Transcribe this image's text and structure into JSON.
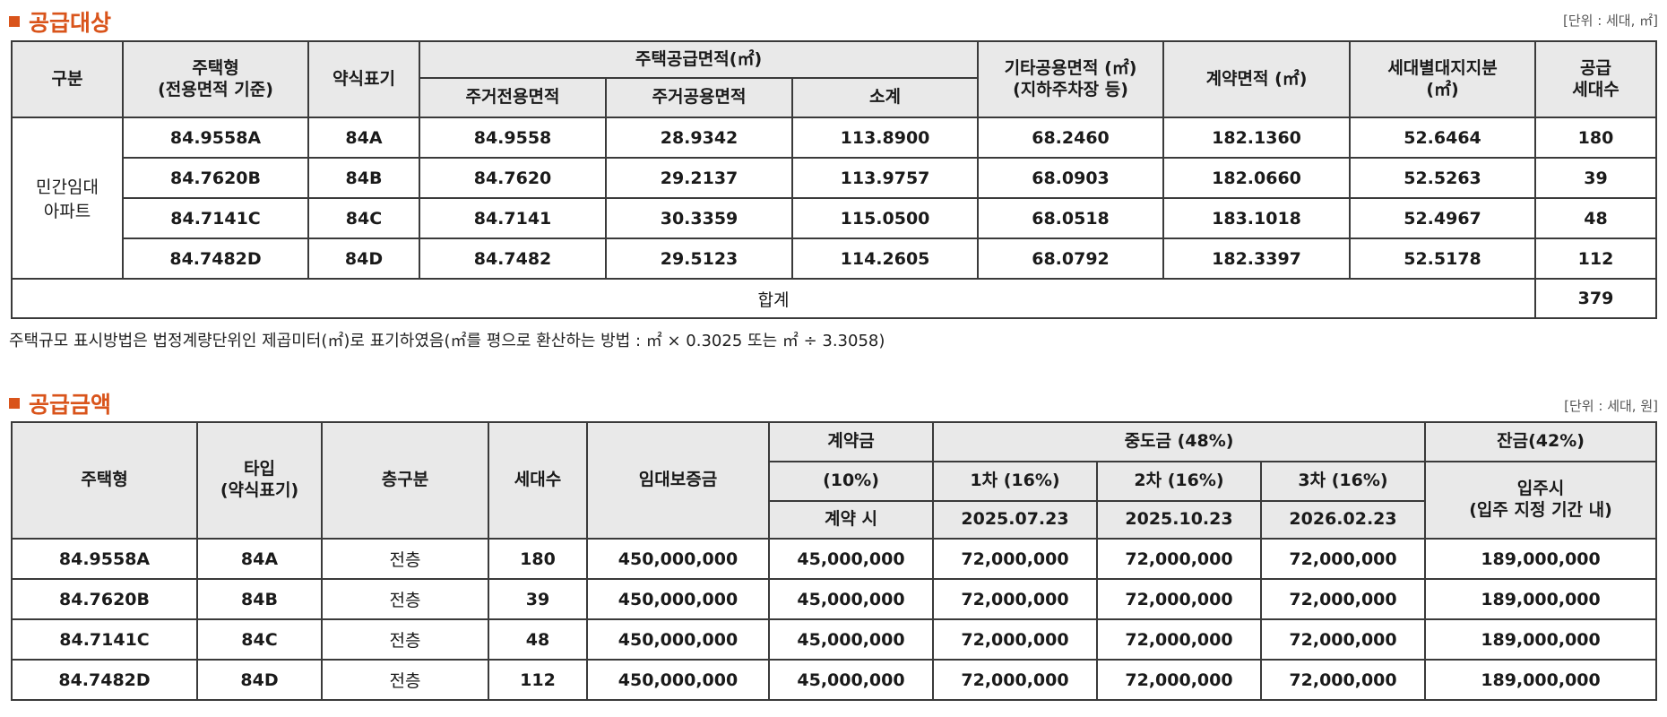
{
  "section1": {
    "title": "공급대상",
    "unit": "[단위 : 세대, ㎡]",
    "headers": {
      "category": "구분",
      "house_type": "주택형",
      "house_type_sub": "(전용면적 기준)",
      "abbr": "약식표기",
      "supply_area": "주택공급면적(㎡)",
      "exclusive": "주거전용면적",
      "common": "주거공용면적",
      "subtotal": "소계",
      "other_common": "기타공용면적 (㎡)",
      "other_common_sub": "(지하주차장 등)",
      "contract_area": "계약면적 (㎡)",
      "land_share": "세대별대지지분",
      "land_share_sub": "(㎡)",
      "supply_units": "공급",
      "supply_units_sub": "세대수"
    },
    "category_line1": "민간임대",
    "category_line2": "아파트",
    "rows": [
      {
        "type": "84.9558A",
        "abbr": "84A",
        "exclusive": "84.9558",
        "common": "28.9342",
        "subtotal": "113.8900",
        "other": "68.2460",
        "contract": "182.1360",
        "land": "52.6464",
        "units": "180"
      },
      {
        "type": "84.7620B",
        "abbr": "84B",
        "exclusive": "84.7620",
        "common": "29.2137",
        "subtotal": "113.9757",
        "other": "68.0903",
        "contract": "182.0660",
        "land": "52.5263",
        "units": "39"
      },
      {
        "type": "84.7141C",
        "abbr": "84C",
        "exclusive": "84.7141",
        "common": "30.3359",
        "subtotal": "115.0500",
        "other": "68.0518",
        "contract": "183.1018",
        "land": "52.4967",
        "units": "48"
      },
      {
        "type": "84.7482D",
        "abbr": "84D",
        "exclusive": "84.7482",
        "common": "29.5123",
        "subtotal": "114.2605",
        "other": "68.0792",
        "contract": "182.3397",
        "land": "52.5178",
        "units": "112"
      }
    ],
    "total_label": "합계",
    "total_units": "379",
    "note": "주택규모 표시방법은 법정계량단위인 제곱미터(㎡)로 표기하였음(㎡를 평으로 환산하는 방법 : ㎡ × 0.3025 또는 ㎡ ÷ 3.3058)"
  },
  "section2": {
    "title": "공급금액",
    "unit": "[단위 : 세대, 원]",
    "headers": {
      "house_type": "주택형",
      "type": "타입",
      "type_sub": "(약식표기)",
      "floor": "층구분",
      "units": "세대수",
      "deposit": "임대보증금",
      "contract": "계약금",
      "contract_pct": "(10%)",
      "contract_when": "계약 시",
      "middle": "중도금 (48%)",
      "m1": "1차 (16%)",
      "m2": "2차 (16%)",
      "m3": "3차 (16%)",
      "m1_date": "2025.07.23",
      "m2_date": "2025.10.23",
      "m3_date": "2026.02.23",
      "balance": "잔금(42%)",
      "balance_when": "입주시",
      "balance_sub": "(입주 지정 기간 내)"
    },
    "rows": [
      {
        "type": "84.9558A",
        "abbr": "84A",
        "floor": "전층",
        "units": "180",
        "deposit": "450,000,000",
        "contract": "45,000,000",
        "m1": "72,000,000",
        "m2": "72,000,000",
        "m3": "72,000,000",
        "balance": "189,000,000"
      },
      {
        "type": "84.7620B",
        "abbr": "84B",
        "floor": "전층",
        "units": "39",
        "deposit": "450,000,000",
        "contract": "45,000,000",
        "m1": "72,000,000",
        "m2": "72,000,000",
        "m3": "72,000,000",
        "balance": "189,000,000"
      },
      {
        "type": "84.7141C",
        "abbr": "84C",
        "floor": "전층",
        "units": "48",
        "deposit": "450,000,000",
        "contract": "45,000,000",
        "m1": "72,000,000",
        "m2": "72,000,000",
        "m3": "72,000,000",
        "balance": "189,000,000"
      },
      {
        "type": "84.7482D",
        "abbr": "84D",
        "floor": "전층",
        "units": "112",
        "deposit": "450,000,000",
        "contract": "45,000,000",
        "m1": "72,000,000",
        "m2": "72,000,000",
        "m3": "72,000,000",
        "balance": "189,000,000"
      }
    ]
  }
}
